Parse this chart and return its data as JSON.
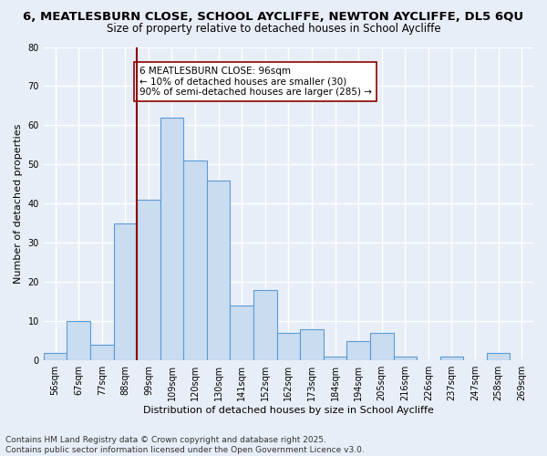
{
  "title_line1": "6, MEATLESBURN CLOSE, SCHOOL AYCLIFFE, NEWTON AYCLIFFE, DL5 6QU",
  "title_line2": "Size of property relative to detached houses in School Aycliffe",
  "xlabel": "Distribution of detached houses by size in School Aycliffe",
  "ylabel": "Number of detached properties",
  "categories": [
    "56sqm",
    "67sqm",
    "77sqm",
    "88sqm",
    "99sqm",
    "109sqm",
    "120sqm",
    "130sqm",
    "141sqm",
    "152sqm",
    "162sqm",
    "173sqm",
    "184sqm",
    "194sqm",
    "205sqm",
    "216sqm",
    "226sqm",
    "237sqm",
    "247sqm",
    "258sqm",
    "269sqm"
  ],
  "values": [
    2,
    10,
    4,
    35,
    41,
    62,
    51,
    46,
    14,
    18,
    7,
    8,
    1,
    5,
    7,
    1,
    0,
    1,
    0,
    2,
    0
  ],
  "bar_color": "#c9dcf0",
  "bar_edge_color": "#5b9bd5",
  "vline_color": "#8b0000",
  "annotation_text": "6 MEATLESBURN CLOSE: 96sqm\n← 10% of detached houses are smaller (30)\n90% of semi-detached houses are larger (285) →",
  "annotation_box_color": "#ffffff",
  "annotation_box_edge": "#8b0000",
  "ylim": [
    0,
    80
  ],
  "yticks": [
    0,
    10,
    20,
    30,
    40,
    50,
    60,
    70,
    80
  ],
  "bg_color": "#e8eef8",
  "grid_color": "#ffffff",
  "footer_line1": "Contains HM Land Registry data © Crown copyright and database right 2025.",
  "footer_line2": "Contains public sector information licensed under the Open Government Licence v3.0.",
  "title_fontsize": 9.5,
  "subtitle_fontsize": 8.5,
  "axis_label_fontsize": 8,
  "tick_fontsize": 7,
  "annotation_fontsize": 7.5,
  "footer_fontsize": 6.5,
  "vline_index": 3.5
}
